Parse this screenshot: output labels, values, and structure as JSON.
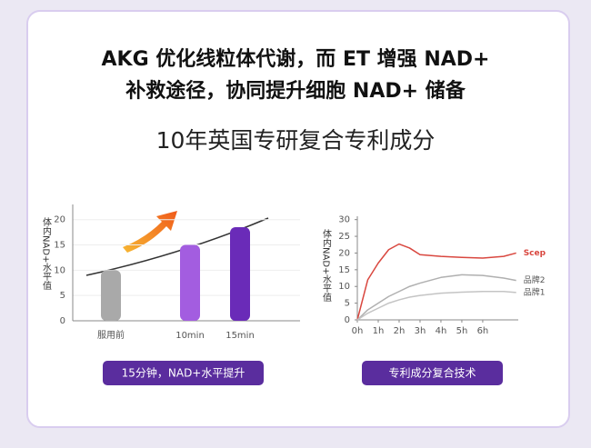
{
  "header": {
    "title_lines": [
      "AKG 优化线粒体代谢，而 ET 增强 NAD+",
      "补救途径，协同提升细胞 NAD+ 储备"
    ],
    "subtitle": "10年英国专研复合专利成分"
  },
  "chart_data": [
    {
      "type": "bar",
      "y_label": "体内NAD+水平值",
      "categories": [
        "服用前",
        "10min",
        "15min"
      ],
      "values": [
        10,
        15,
        18.5
      ],
      "colors": [
        "#a9a9a9",
        "#a35de0",
        "#6a2bb8"
      ],
      "ylim": [
        0,
        23
      ],
      "yticks": [
        0,
        5,
        10,
        15,
        20
      ],
      "grid": true,
      "caption": "15分钟，NAD+水平提升"
    },
    {
      "type": "line",
      "y_label": "体内NAD+水平值",
      "x": [
        0,
        0.5,
        1,
        1.5,
        2,
        2.5,
        3,
        4,
        5,
        6,
        7,
        7.6
      ],
      "series": [
        {
          "name": "Scep",
          "color": "#d9473f",
          "values": [
            0,
            12,
            17,
            21,
            22.7,
            21.5,
            19.5,
            19,
            18.7,
            18.5,
            19,
            20
          ]
        },
        {
          "name": "品牌2",
          "color": "#b0b0b0",
          "values": [
            0,
            3,
            5,
            7,
            8.5,
            10,
            11,
            12.7,
            13.5,
            13.3,
            12.5,
            11.8
          ]
        },
        {
          "name": "品牌1",
          "color": "#c4c4c4",
          "values": [
            0,
            2,
            3.5,
            5,
            6,
            6.8,
            7.3,
            8,
            8.3,
            8.5,
            8.5,
            8.2
          ]
        }
      ],
      "xlim": [
        0,
        7.7
      ],
      "xticks": [
        {
          "value": 0,
          "label": "0h"
        },
        {
          "value": 1,
          "label": "1h"
        },
        {
          "value": 2,
          "label": "2h"
        },
        {
          "value": 3,
          "label": "3h"
        },
        {
          "value": 4,
          "label": "4h"
        },
        {
          "value": 5,
          "label": "5h"
        },
        {
          "value": 6,
          "label": "6h"
        }
      ],
      "ylim": [
        0,
        31
      ],
      "yticks": [
        0,
        5,
        10,
        15,
        20,
        25,
        30
      ],
      "caption": "专利成分复合技术"
    }
  ]
}
